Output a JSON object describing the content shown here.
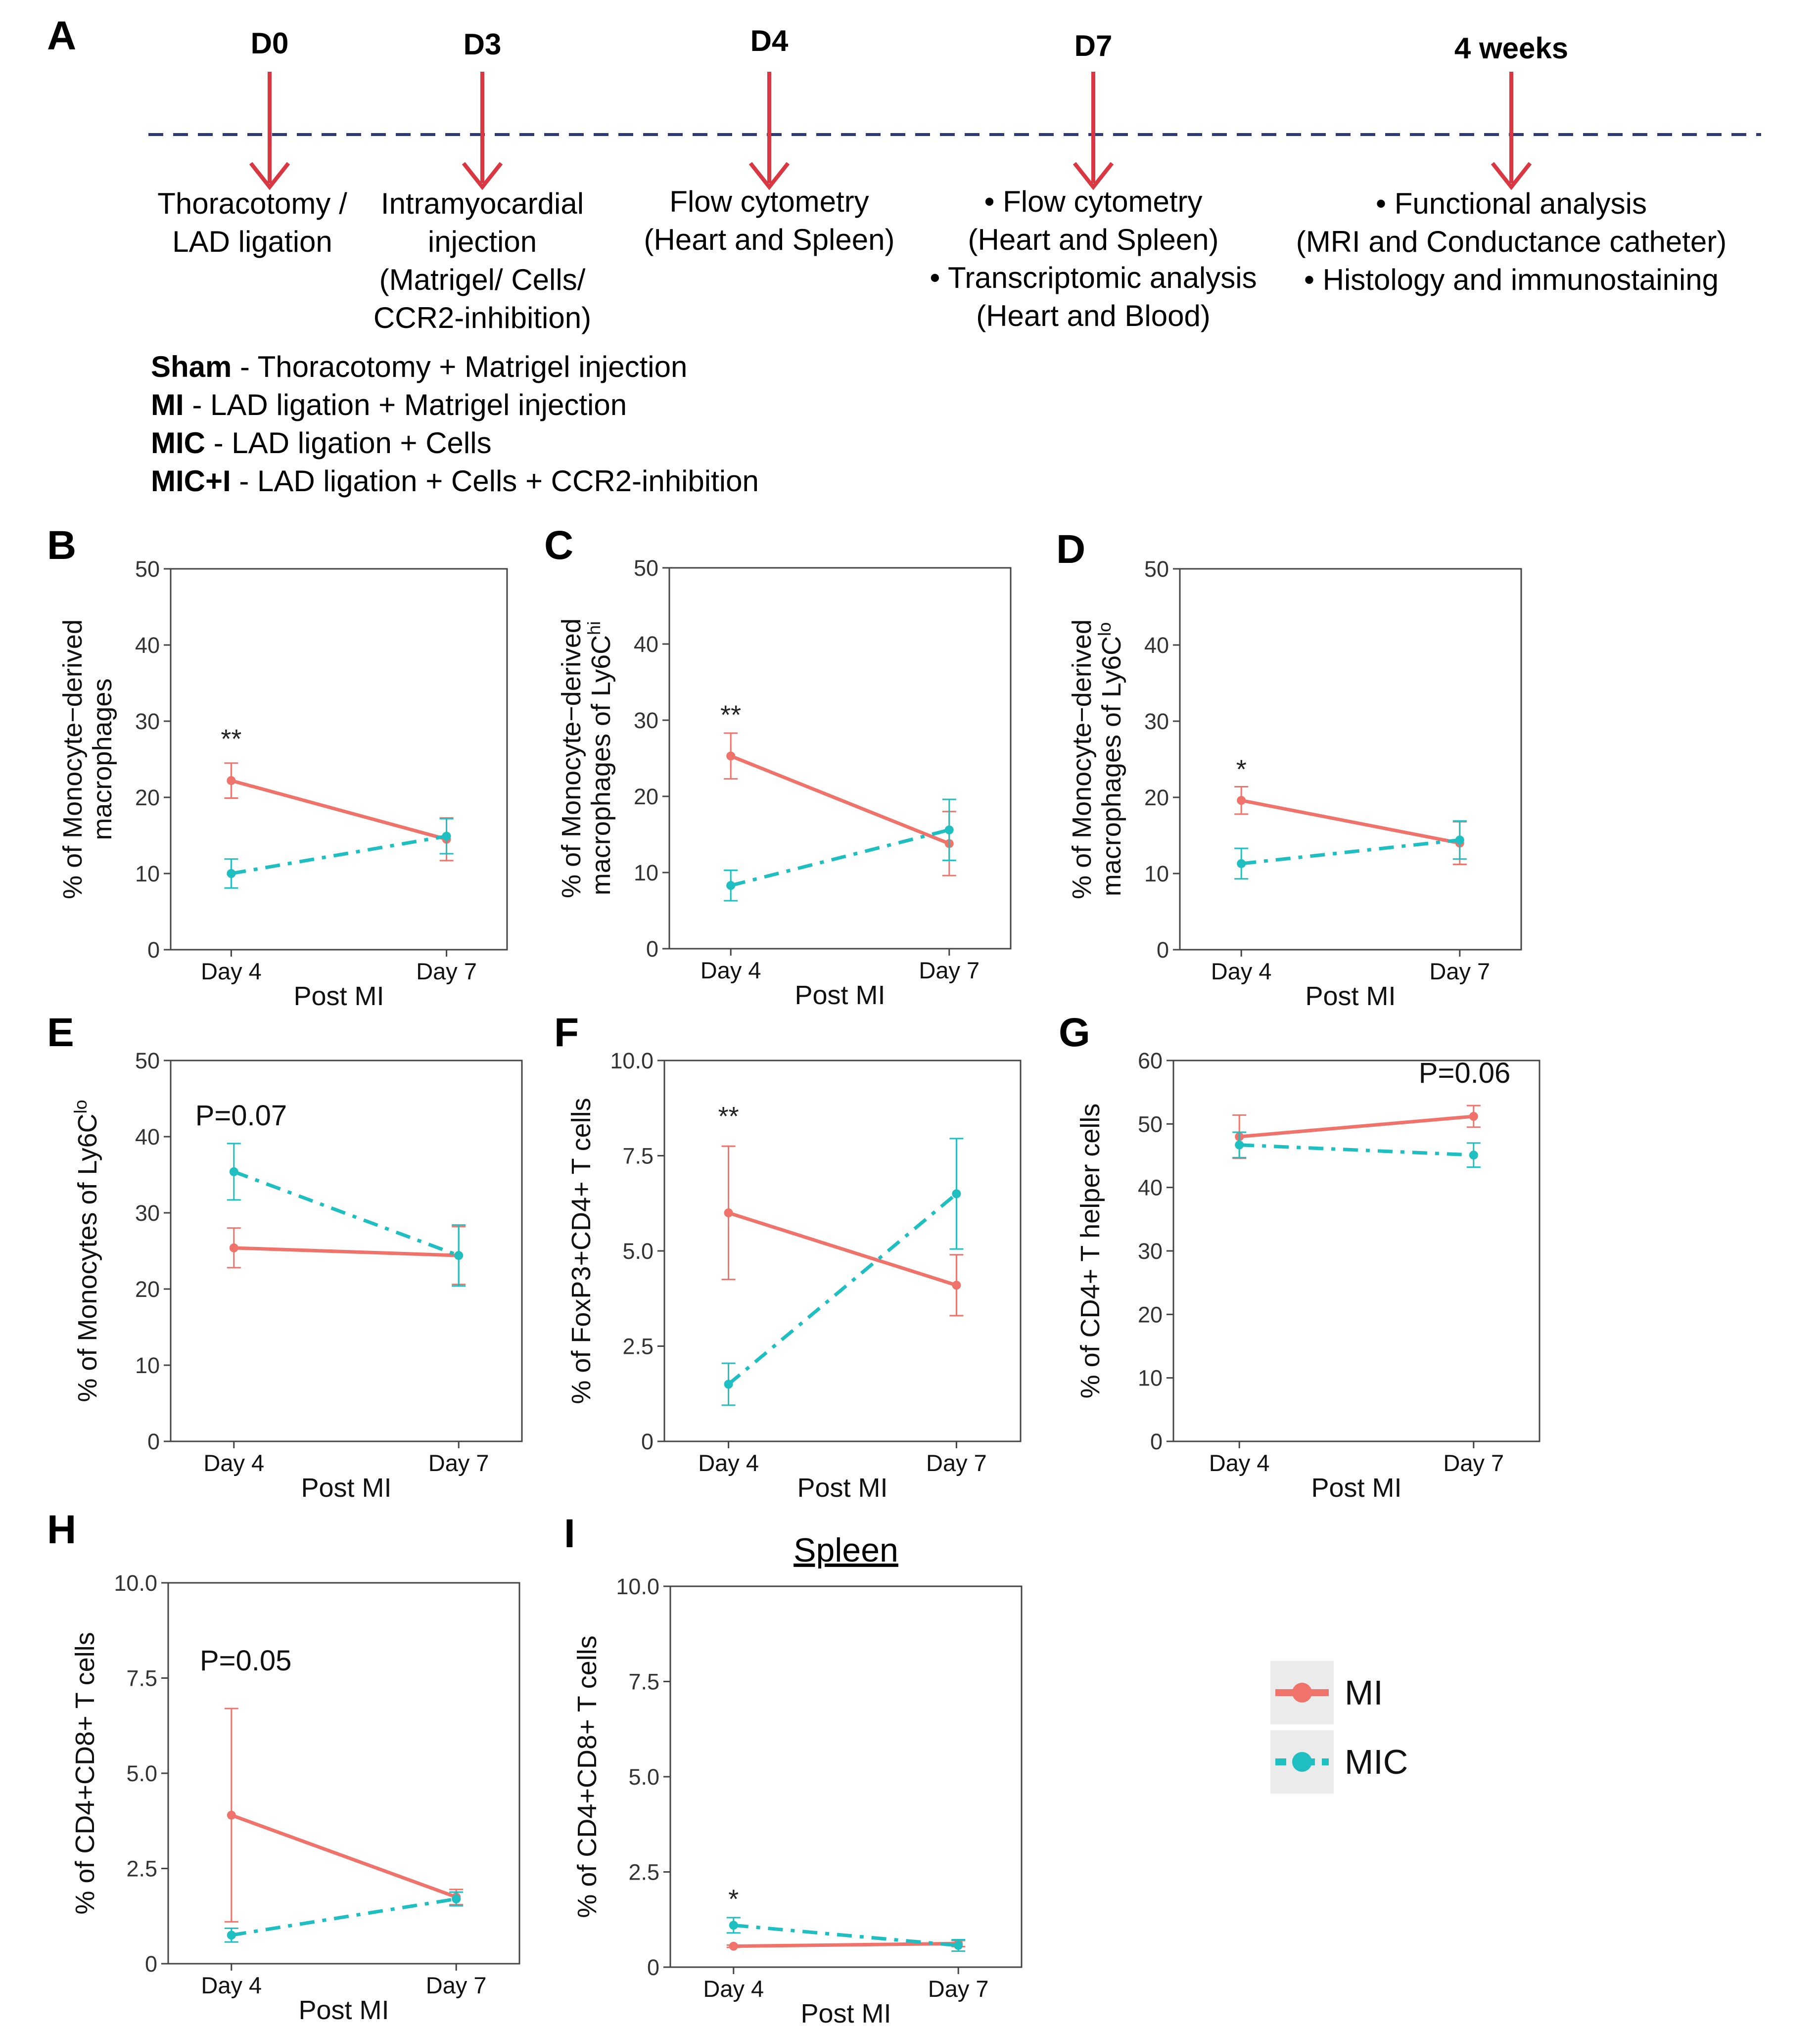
{
  "timeline": {
    "panel_label": "A",
    "days": [
      {
        "label": "D0",
        "desc": [
          "Thoracotomy /",
          "LAD ligation"
        ]
      },
      {
        "label": "D3",
        "desc": [
          "Intramyocardial",
          "injection",
          "(Matrigel/ Cells/",
          "CCR2-inhibition)"
        ]
      },
      {
        "label": "D4",
        "desc": [
          "Flow cytometry",
          "(Heart and Spleen)"
        ]
      },
      {
        "label": "D7",
        "desc": [
          "• Flow cytometry",
          "(Heart and Spleen)",
          "• Transcriptomic analysis",
          "(Heart and Blood)"
        ]
      },
      {
        "label": "4 weeks",
        "desc": [
          "• Functional analysis",
          "(MRI and Conductance catheter)",
          "• Histology and immunostaining"
        ]
      }
    ],
    "groups": [
      {
        "name": "Sham",
        "desc": " - Thoracotomy + Matrigel injection"
      },
      {
        "name": "MI",
        "desc": " - LAD ligation + Matrigel injection"
      },
      {
        "name": "MIC",
        "desc": " - LAD ligation + Cells"
      },
      {
        "name": "MIC+I",
        "desc": " - LAD ligation + Cells + CCR2-inhibition"
      }
    ],
    "arrow_color": "#d93742",
    "dash_color": "#2e3a78"
  },
  "colors": {
    "MI": "#f0736b",
    "MIC": "#1fbec0"
  },
  "legend": {
    "entries": [
      "MI",
      "MIC"
    ]
  },
  "chart_data": [
    {
      "panel": "B",
      "type": "line",
      "ylabel": [
        "% of Monocyte−derived",
        "macrophages"
      ],
      "xlabel": "Post MI",
      "categories": [
        "Day 4",
        "Day 7"
      ],
      "ylim": [
        0,
        50
      ],
      "yticks": [
        0,
        10,
        20,
        30,
        40,
        50
      ],
      "ytick_labels": [
        "0",
        "10",
        "20",
        "30",
        "40",
        "50"
      ],
      "series": [
        {
          "name": "MI",
          "values": [
            22.2,
            14.5
          ],
          "err": [
            2.3,
            2.8
          ]
        },
        {
          "name": "MIC",
          "values": [
            10.0,
            14.9
          ],
          "err": [
            1.9,
            2.3
          ]
        }
      ],
      "annotation": "**",
      "annotation_at": {
        "category": "Day 4",
        "y": 26.5
      }
    },
    {
      "panel": "C",
      "type": "line",
      "ylabel": [
        "% of Monocyte−derived",
        "macrophages of Ly6C"
      ],
      "ylabel_sup": "hi",
      "xlabel": "Post MI",
      "categories": [
        "Day 4",
        "Day 7"
      ],
      "ylim": [
        0,
        50
      ],
      "yticks": [
        0,
        10,
        20,
        30,
        40,
        50
      ],
      "ytick_labels": [
        "0",
        "10",
        "20",
        "30",
        "40",
        "50"
      ],
      "series": [
        {
          "name": "MI",
          "values": [
            25.3,
            13.8
          ],
          "err": [
            3.0,
            4.2
          ]
        },
        {
          "name": "MIC",
          "values": [
            8.3,
            15.6
          ],
          "err": [
            2.0,
            4.0
          ]
        }
      ],
      "annotation": "**",
      "annotation_at": {
        "category": "Day 4",
        "y": 29.5
      }
    },
    {
      "panel": "D",
      "type": "line",
      "ylabel": [
        "% of Monocyte−derived",
        "macrophages of Ly6C"
      ],
      "ylabel_sup": "lo",
      "xlabel": "Post MI",
      "categories": [
        "Day 4",
        "Day 7"
      ],
      "ylim": [
        0,
        50
      ],
      "yticks": [
        0,
        10,
        20,
        30,
        40,
        50
      ],
      "ytick_labels": [
        "0",
        "10",
        "20",
        "30",
        "40",
        "50"
      ],
      "series": [
        {
          "name": "MI",
          "values": [
            19.6,
            14.0
          ],
          "err": [
            1.8,
            2.8
          ]
        },
        {
          "name": "MIC",
          "values": [
            11.3,
            14.4
          ],
          "err": [
            2.0,
            2.5
          ]
        }
      ],
      "annotation": "*",
      "annotation_at": {
        "category": "Day 4",
        "y": 22.5
      }
    },
    {
      "panel": "E",
      "type": "line",
      "ylabel": [
        "% of Monocytes of Ly6C"
      ],
      "ylabel_sup": "lo",
      "xlabel": "Post MI",
      "categories": [
        "Day 4",
        "Day 7"
      ],
      "ylim": [
        0,
        50
      ],
      "yticks": [
        0,
        10,
        20,
        30,
        40,
        50
      ],
      "ytick_labels": [
        "0",
        "10",
        "20",
        "30",
        "40",
        "50"
      ],
      "series": [
        {
          "name": "MI",
          "values": [
            25.4,
            24.4
          ],
          "err": [
            2.6,
            3.8
          ]
        },
        {
          "name": "MIC",
          "values": [
            35.4,
            24.4
          ],
          "err": [
            3.7,
            4.0
          ]
        }
      ],
      "annotation": "P=0.07",
      "annotation_at": {
        "x_frac": 0.07,
        "y": 41.5
      }
    },
    {
      "panel": "F",
      "type": "line",
      "ylabel": [
        "% of FoxP3+CD4+ T cells"
      ],
      "xlabel": "Post MI",
      "categories": [
        "Day 4",
        "Day 7"
      ],
      "ylim": [
        0,
        10
      ],
      "yticks": [
        0,
        2.5,
        5,
        7.5,
        10
      ],
      "ytick_labels": [
        "0",
        "2.5",
        "5.0",
        "7.5",
        "10.0"
      ],
      "series": [
        {
          "name": "MI",
          "values": [
            6.0,
            4.1
          ],
          "err": [
            1.75,
            0.8
          ]
        },
        {
          "name": "MIC",
          "values": [
            1.5,
            6.5
          ],
          "err": [
            0.55,
            1.45
          ]
        }
      ],
      "annotation": "**",
      "annotation_at": {
        "category": "Day 4",
        "y": 8.3
      }
    },
    {
      "panel": "G",
      "type": "line",
      "ylabel": [
        "% of CD4+ T helper cells"
      ],
      "xlabel": "Post MI",
      "categories": [
        "Day 4",
        "Day 7"
      ],
      "ylim": [
        0,
        60
      ],
      "yticks": [
        0,
        10,
        20,
        30,
        40,
        50,
        60
      ],
      "ytick_labels": [
        "0",
        "10",
        "20",
        "30",
        "40",
        "50",
        "60"
      ],
      "series": [
        {
          "name": "MI",
          "values": [
            48.0,
            51.2
          ],
          "err": [
            3.4,
            1.7
          ]
        },
        {
          "name": "MIC",
          "values": [
            46.7,
            45.1
          ],
          "err": [
            2.0,
            1.9
          ]
        }
      ],
      "annotation": "P=0.06",
      "annotation_at": {
        "x_frac": 0.67,
        "y": 56.5
      }
    },
    {
      "panel": "H",
      "type": "line",
      "ylabel": [
        "% of CD4+CD8+ T cells"
      ],
      "xlabel": "Post MI",
      "categories": [
        "Day 4",
        "Day 7"
      ],
      "ylim": [
        0,
        10
      ],
      "yticks": [
        0,
        2.5,
        5,
        7.5,
        10
      ],
      "ytick_labels": [
        "0",
        "2.5",
        "5.0",
        "7.5",
        "10.0"
      ],
      "series": [
        {
          "name": "MI",
          "values": [
            3.9,
            1.75
          ],
          "err": [
            2.8,
            0.2
          ]
        },
        {
          "name": "MIC",
          "values": [
            0.75,
            1.7
          ],
          "err": [
            0.18,
            0.18
          ]
        }
      ],
      "annotation": "P=0.05",
      "annotation_at": {
        "x_frac": 0.09,
        "y": 7.7
      }
    },
    {
      "panel": "I",
      "type": "line",
      "title": "Spleen",
      "ylabel": [
        "% of CD4+CD8+ T cells"
      ],
      "xlabel": "Post MI",
      "categories": [
        "Day 4",
        "Day 7"
      ],
      "ylim": [
        0,
        10
      ],
      "yticks": [
        0,
        2.5,
        5,
        7.5,
        10
      ],
      "ytick_labels": [
        "0",
        "2.5",
        "5.0",
        "7.5",
        "10.0"
      ],
      "series": [
        {
          "name": "MI",
          "values": [
            0.55,
            0.62
          ],
          "err": [
            0.03,
            0.08
          ]
        },
        {
          "name": "MIC",
          "values": [
            1.1,
            0.57
          ],
          "err": [
            0.2,
            0.15
          ]
        }
      ],
      "annotation": "*",
      "annotation_at": {
        "category": "Day 4",
        "y": 1.55
      }
    }
  ]
}
